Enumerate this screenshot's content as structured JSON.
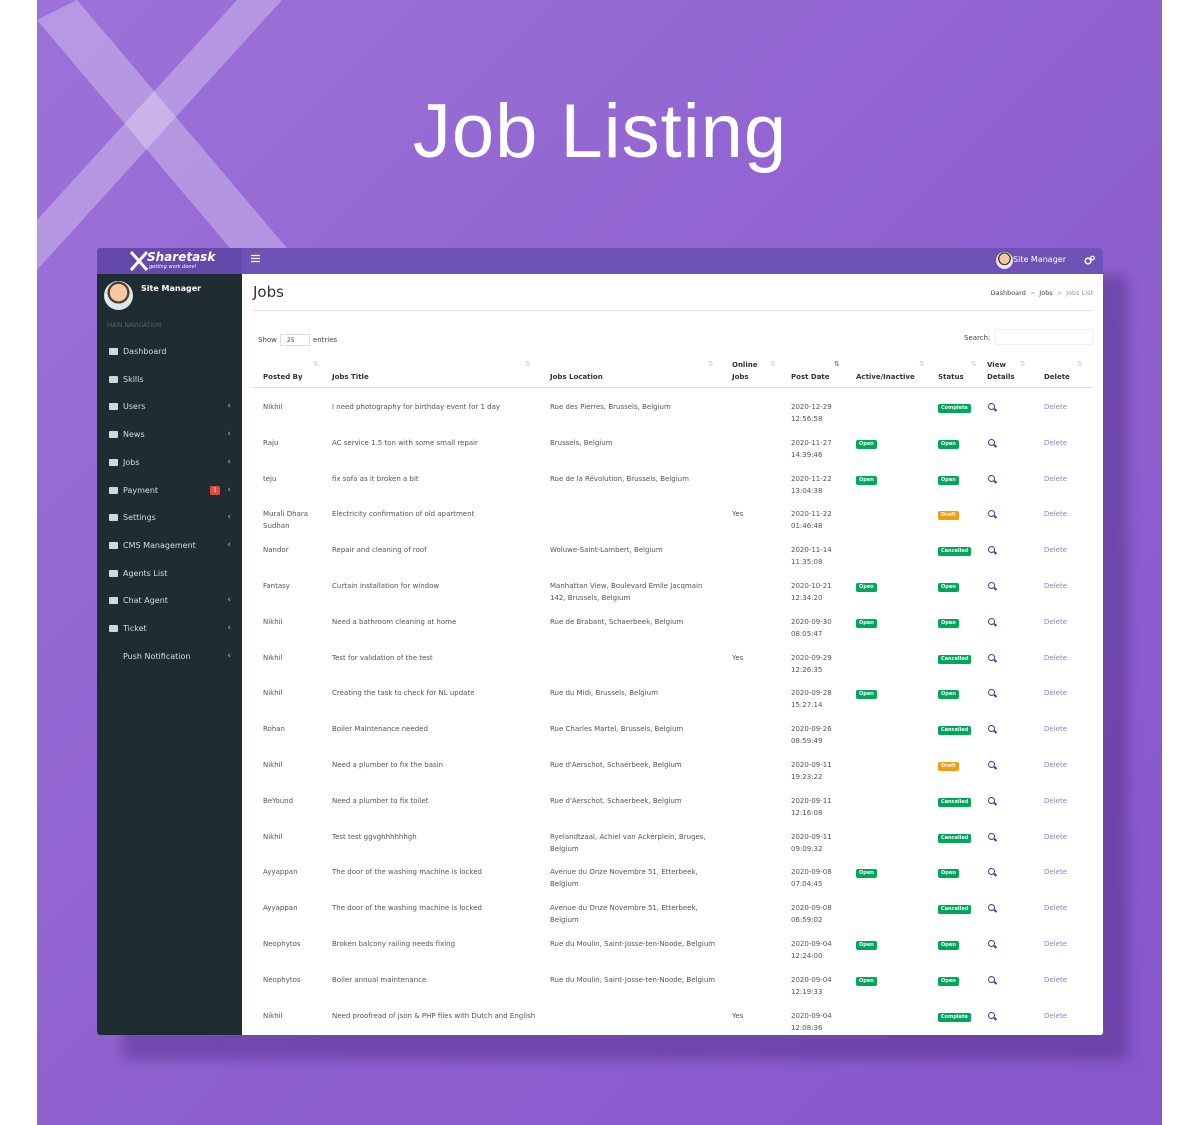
{
  "banner": {
    "title": "Job Listing"
  },
  "app": {
    "logo": "Sharetask",
    "tagline": "getting work done!",
    "user": "Site Manager"
  },
  "sidebar": {
    "user": "Site Manager",
    "section": "MAIN NAVIGATION",
    "items": [
      {
        "label": "Dashboard",
        "submenu": false
      },
      {
        "label": "Skills",
        "submenu": false
      },
      {
        "label": "Users",
        "submenu": true
      },
      {
        "label": "News",
        "submenu": true
      },
      {
        "label": "Jobs",
        "submenu": true
      },
      {
        "label": "Payment",
        "submenu": true,
        "badge": "1"
      },
      {
        "label": "Settings",
        "submenu": true
      },
      {
        "label": "CMS Management",
        "submenu": true
      },
      {
        "label": "Agents List",
        "submenu": false
      },
      {
        "label": "Chat Agent",
        "submenu": true
      },
      {
        "label": "Ticket",
        "submenu": true
      },
      {
        "label": "Push Notification",
        "submenu": true
      }
    ]
  },
  "content": {
    "heading": "Jobs",
    "breadcrumb": [
      "Dashboard",
      "Jobs",
      "Jobs List"
    ],
    "show": "Show",
    "page_size": "25",
    "entries": "entries",
    "search": "Search:"
  },
  "table": {
    "columns": [
      "Posted By",
      "Jobs Title",
      "Jobs Location",
      "Online Jobs",
      "Post Date",
      "Active/Inactive",
      "Status",
      "View Details",
      "Delete"
    ],
    "rows": [
      [
        "Nikhil",
        "I need photography for birthday event for 1 day",
        "Rue des Pierres, Brussels, Belgium",
        null,
        "2020-12-29 12:56:58",
        null,
        {
          "label": "Complete",
          "color": "#00a65a"
        },
        null,
        "Delete"
      ],
      [
        "Raju",
        "AC service 1.5 ton with some small repair",
        "Brussels, Belgium",
        null,
        "2020-11-27 14:39:46",
        {
          "label": "Open",
          "color": "#00a65a"
        },
        {
          "label": "Open",
          "color": "#00a65a"
        },
        null,
        "Delete"
      ],
      [
        "teju",
        "fix sofa as it broken a bit",
        "Rue de la Révolution, Brussels, Belgium",
        null,
        "2020-11-22 13:04:38",
        {
          "label": "Open",
          "color": "#00a65a"
        },
        {
          "label": "Open",
          "color": "#00a65a"
        },
        null,
        "Delete"
      ],
      [
        "Murali Dhara Sudhan",
        "Electricity confirmation of old apartment",
        null,
        "Yes",
        "2020-11-22 01:46:48",
        null,
        {
          "label": "Draft",
          "color": "#f39c12"
        },
        null,
        "Delete"
      ],
      [
        "Nandor",
        "Repair and cleaning of roof",
        "Woluwe-Saint-Lambert, Belgium",
        null,
        "2020-11-14 11:35:08",
        null,
        {
          "label": "Cancelled",
          "color": "#00a65a"
        },
        null,
        "Delete"
      ],
      [
        "Fantasy",
        "Curtain installation for window",
        "Manhattan View, Boulevard Emile Jacqmain 142, Brussels, Belgium",
        null,
        "2020-10-21 12:34:20",
        {
          "label": "Open",
          "color": "#00a65a"
        },
        {
          "label": "Open",
          "color": "#00a65a"
        },
        null,
        "Delete"
      ],
      [
        "Nikhil",
        "Need a bathroom cleaning at home",
        "Rue de Brabant, Schaerbeek, Belgium",
        null,
        "2020-09-30 08:05:47",
        {
          "label": "Open",
          "color": "#00a65a"
        },
        {
          "label": "Open",
          "color": "#00a65a"
        },
        null,
        "Delete"
      ],
      [
        "Nikhil",
        "Test for validation of the test",
        null,
        "Yes",
        "2020-09-29 12:26:35",
        null,
        {
          "label": "Cancelled",
          "color": "#00a65a"
        },
        null,
        "Delete"
      ],
      [
        "Nikhil",
        "Creating the task to check for NL update",
        "Rue du Midi, Brussels, Belgium",
        null,
        "2020-09-28 15:27:14",
        {
          "label": "Open",
          "color": "#00a65a"
        },
        {
          "label": "Open",
          "color": "#00a65a"
        },
        null,
        "Delete"
      ],
      [
        "Rohan",
        "Boiler Maintenance needed",
        "Rue Charles Martel, Brussels, Belgium",
        null,
        "2020-09-26 08:59:49",
        null,
        {
          "label": "Cancelled",
          "color": "#00a65a"
        },
        null,
        "Delete"
      ],
      [
        "Nikhil",
        "Need a plumber to fix the basin",
        "Rue d'Aerschot, Schaerbeek, Belgium",
        null,
        "2020-09-11 19:23:22",
        null,
        {
          "label": "Draft",
          "color": "#f39c12"
        },
        null,
        "Delete"
      ],
      [
        "BeYound",
        "Need a plumber to fix toilet",
        "Rue d'Aerschot, Schaerbeek, Belgium",
        null,
        "2020-09-11 12:16:08",
        null,
        {
          "label": "Cancelled",
          "color": "#00a65a"
        },
        null,
        "Delete"
      ],
      [
        "Nikhil",
        "Test test ggvghhhhhhgh",
        "Ryelandtzaal, Achiel van Ackerplein, Bruges, Belgium",
        null,
        "2020-09-11 09:09:32",
        null,
        {
          "label": "Cancelled",
          "color": "#00a65a"
        },
        null,
        "Delete"
      ],
      [
        "Ayyappan",
        "The door of the washing machine is locked",
        "Avenue du Onze Novembre 51, Etterbeek, Belgium",
        null,
        "2020-09-08 07:04:45",
        {
          "label": "Open",
          "color": "#00a65a"
        },
        {
          "label": "Open",
          "color": "#00a65a"
        },
        null,
        "Delete"
      ],
      [
        "Ayyappan",
        "The door of the washing machine is locked",
        "Avenue du Onze Novembre 51, Etterbeek, Belgium",
        null,
        "2020-09-08 06:59:02",
        null,
        {
          "label": "Cancelled",
          "color": "#00a65a"
        },
        null,
        "Delete"
      ],
      [
        "Neophytos",
        "Broken balcony railing needs fixing",
        "Rue du Moulin, Saint-Josse-ten-Noode, Belgium",
        null,
        "2020-09-04 12:24:00",
        {
          "label": "Open",
          "color": "#00a65a"
        },
        {
          "label": "Open",
          "color": "#00a65a"
        },
        null,
        "Delete"
      ],
      [
        "Neophytos",
        "Boiler annual maintenance",
        "Rue du Moulin, Saint-Josse-ten-Noode, Belgium",
        null,
        "2020-09-04 12:19:33",
        {
          "label": "Open",
          "color": "#00a65a"
        },
        {
          "label": "Open",
          "color": "#00a65a"
        },
        null,
        "Delete"
      ],
      [
        "Nikhil",
        "Need proofread of json & PHP files with Dutch and English",
        null,
        "Yes",
        "2020-09-04 12:08:36",
        null,
        {
          "label": "Complete",
          "color": "#00a65a"
        },
        null,
        "Delete"
      ]
    ]
  }
}
